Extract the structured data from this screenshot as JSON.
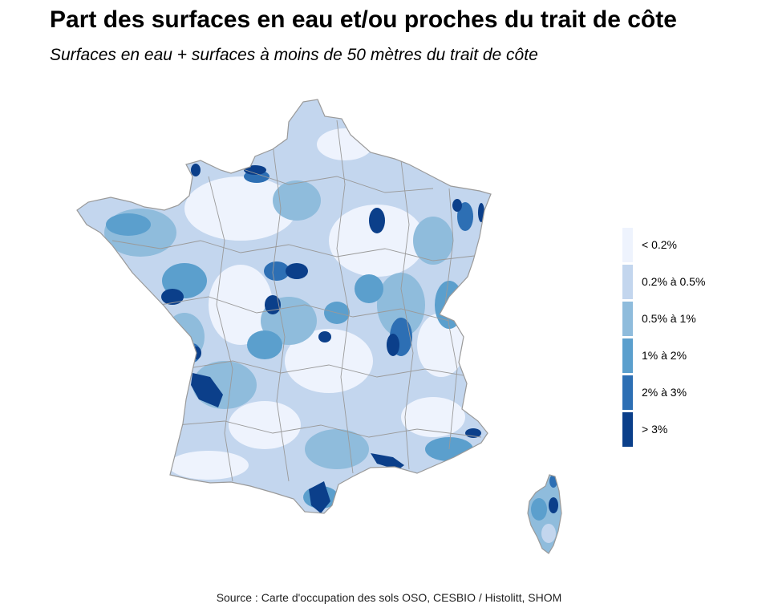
{
  "title": "Part des surfaces en eau et/ou proches du trait de côte",
  "subtitle": "Surfaces en eau + surfaces à moins de 50 mètres du trait de côte",
  "legend": {
    "items": [
      {
        "label": "< 0.2%",
        "color": "#eef3fd"
      },
      {
        "label": "0.2% à 0.5%",
        "color": "#c3d6ee"
      },
      {
        "label": "0.5% à 1%",
        "color": "#8fbcdc"
      },
      {
        "label": "1% à 2%",
        "color": "#5b9fcd"
      },
      {
        "label": "2% à 3%",
        "color": "#2d6fb4"
      },
      {
        "label": "> 3%",
        "color": "#0b3f8a"
      }
    ]
  },
  "map": {
    "regions": [
      "France métropolitaine",
      "Corse"
    ],
    "border_color": "#9a9a9a"
  },
  "source": "Source : Carte d'occupation des sols OSO, CESBIO / Histolitt, SHOM"
}
